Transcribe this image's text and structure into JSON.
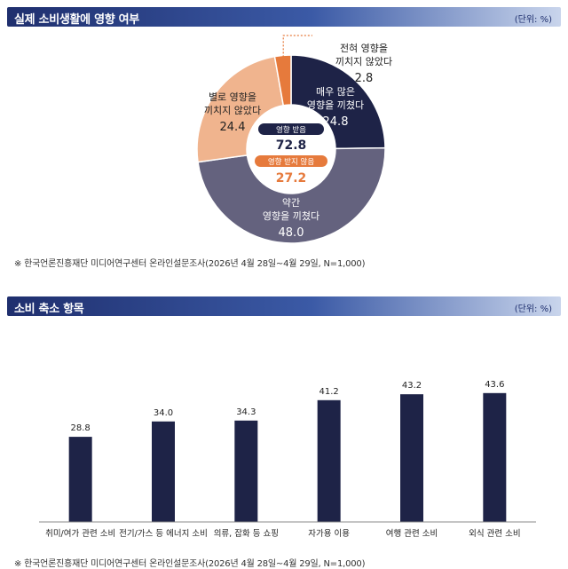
{
  "panel1": {
    "title": "실제 소비생활에 영향 여부",
    "unit": "(단위: %)",
    "source": "※ 한국언론진흥재단 미디어연구센터 온라인설문조사(2026년 4월 28일~4월 29일, N=1,000)"
  },
  "panel2": {
    "title": "소비 축소 항목",
    "unit": "(단위: %)",
    "source": "※ 한국언론진흥재단 미디어연구센터 온라인설문조사(2026년 4월 28일~4월 29일, N=1,000)"
  },
  "colors": {
    "navy": "#1e2347",
    "slate": "#64627e",
    "peach": "#f0b48e",
    "orange": "#e67a3c"
  },
  "chart_data": [
    {
      "type": "pie",
      "donut": true,
      "slices": [
        {
          "label": [
            "매우 많은",
            "영향을 끼쳤다"
          ],
          "value": 24.8,
          "color": "#1e2347"
        },
        {
          "label": [
            "약간",
            "영향을 끼쳤다"
          ],
          "value": 48.0,
          "color": "#64627e"
        },
        {
          "label": [
            "별로 영향을",
            "끼치지 않았다"
          ],
          "value": 24.4,
          "color": "#f0b48e"
        },
        {
          "label": [
            "전혀 영향을",
            "끼치지 않았다"
          ],
          "value": 2.8,
          "color": "#e67a3c"
        }
      ],
      "center": {
        "affected_label": "영향 받음",
        "affected_value": "72.8",
        "unaffected_label": "영향 받지 않음",
        "unaffected_value": "27.2"
      }
    },
    {
      "type": "bar",
      "categories": [
        "취미/여가 관련 소비",
        "전기/가스 등 에너지 소비",
        "의류, 잡화 등 쇼핑",
        "자가용 이용",
        "여행 관련 소비",
        "외식 관련 소비"
      ],
      "values": [
        28.8,
        34.0,
        34.3,
        41.2,
        43.2,
        43.6
      ],
      "ylim": [
        0,
        60
      ],
      "color": "#1e2347"
    }
  ]
}
